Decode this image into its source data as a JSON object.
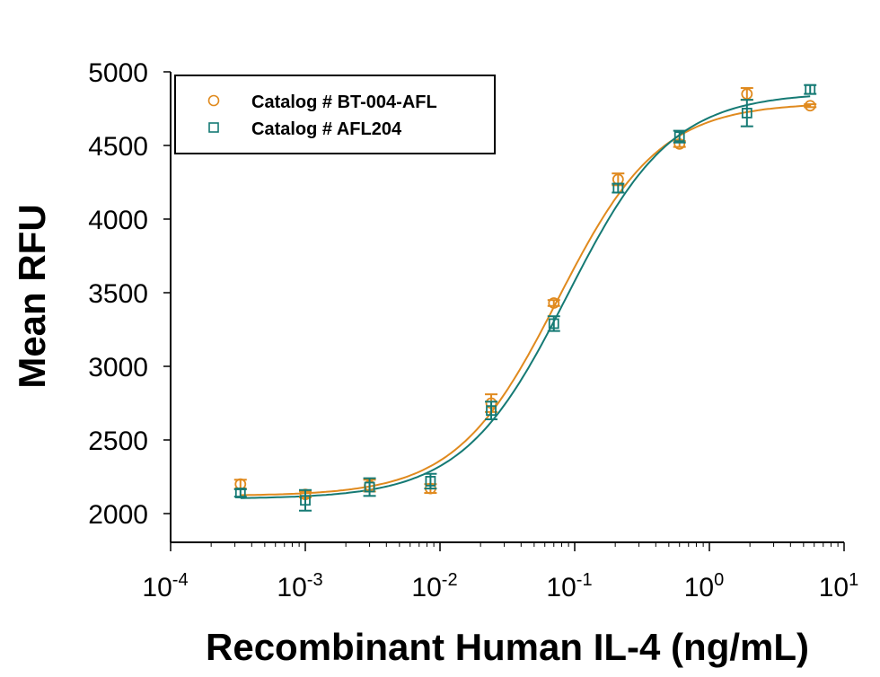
{
  "chart_data": {
    "type": "scatter",
    "xlabel": "Recombinant Human IL-4 (ng/mL)",
    "ylabel": "Mean RFU",
    "xscale": "log",
    "xlim": [
      0.0001,
      10
    ],
    "ylim": [
      1805,
      5000
    ],
    "x_ticks": [
      {
        "base": "10",
        "exp": "-4",
        "v": 0.0001
      },
      {
        "base": "10",
        "exp": "-3",
        "v": 0.001
      },
      {
        "base": "10",
        "exp": "-2",
        "v": 0.01
      },
      {
        "base": "10",
        "exp": "-1",
        "v": 0.1
      },
      {
        "base": "10",
        "exp": "0",
        "v": 1
      },
      {
        "base": "10",
        "exp": "1",
        "v": 10
      }
    ],
    "y_ticks": [
      "2000",
      "2500",
      "3000",
      "3500",
      "4000",
      "4500",
      "5000"
    ],
    "grid": false,
    "legend_position": "top-left",
    "x": [
      0.00033,
      0.001,
      0.003,
      0.0085,
      0.024,
      0.07,
      0.21,
      0.6,
      1.9,
      5.6
    ],
    "series": [
      {
        "name": "Catalog # BT-004-AFL",
        "marker": "circle",
        "color": "#E08A1E",
        "values": [
          2200,
          2130,
          2190,
          2170,
          2750,
          3430,
          4270,
          4510,
          4850,
          4770
        ],
        "errors": [
          30,
          20,
          40,
          30,
          60,
          20,
          40,
          20,
          40,
          10
        ],
        "fit": {
          "bottom": 2120,
          "top": 4790,
          "ec50": 0.075,
          "hill": 1.15
        }
      },
      {
        "name": "Catalog # AFL204",
        "marker": "square",
        "color": "#157A74",
        "values": [
          2140,
          2090,
          2180,
          2220,
          2700,
          3290,
          4210,
          4560,
          4720,
          4880
        ],
        "errors": [
          25,
          70,
          60,
          50,
          60,
          50,
          30,
          40,
          90,
          30
        ],
        "fit": {
          "bottom": 2100,
          "top": 4860,
          "ec50": 0.088,
          "hill": 1.12
        }
      }
    ]
  }
}
